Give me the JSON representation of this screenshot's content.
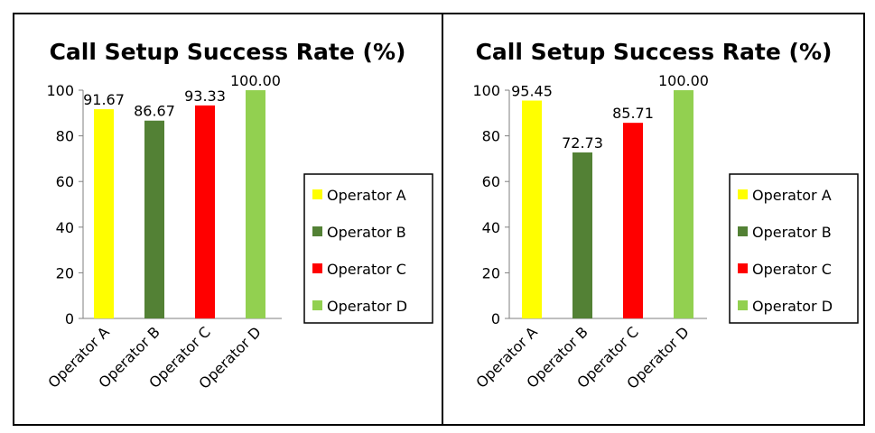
{
  "chart_data": [
    {
      "type": "bar",
      "title": "Call Setup Success Rate (%)",
      "categories": [
        "Operator A",
        "Operator B",
        "Operator C",
        "Operator D"
      ],
      "values": [
        91.67,
        86.67,
        93.33,
        100.0
      ],
      "data_labels": [
        "91.67",
        "86.67",
        "93.33",
        "100.00"
      ],
      "colors": [
        "#ffff00",
        "#538135",
        "#ff0000",
        "#92d050"
      ],
      "ylim": [
        0,
        100
      ],
      "yticks": [
        "0",
        "20",
        "40",
        "60",
        "80",
        "100"
      ],
      "legend": [
        "Operator A",
        "Operator B",
        "Operator C",
        "Operator D"
      ],
      "legend_position": "right",
      "grid": false
    },
    {
      "type": "bar",
      "title": "Call Setup Success Rate (%)",
      "categories": [
        "Operator A",
        "Operator B",
        "Operator C",
        "Operator D"
      ],
      "values": [
        95.45,
        72.73,
        85.71,
        100.0
      ],
      "data_labels": [
        "95.45",
        "72.73",
        "85.71",
        "100.00"
      ],
      "colors": [
        "#ffff00",
        "#538135",
        "#ff0000",
        "#92d050"
      ],
      "ylim": [
        0,
        100
      ],
      "yticks": [
        "0",
        "20",
        "40",
        "60",
        "80",
        "100"
      ],
      "legend": [
        "Operator A",
        "Operator B",
        "Operator C",
        "Operator D"
      ],
      "legend_position": "right",
      "grid": false
    }
  ]
}
